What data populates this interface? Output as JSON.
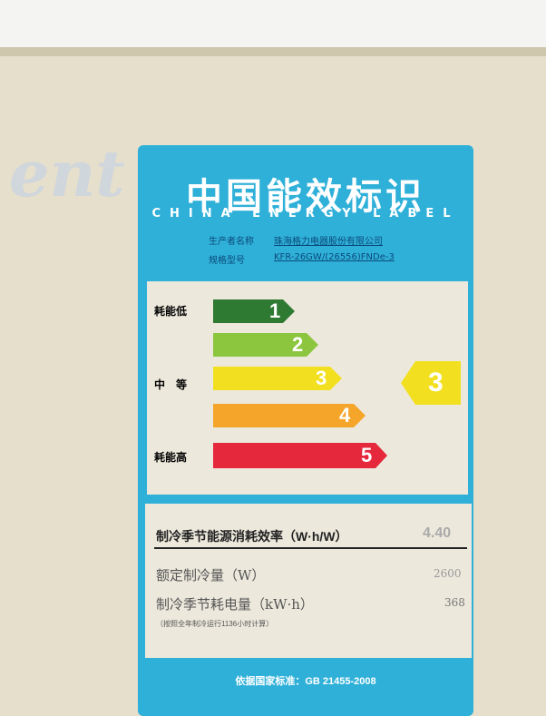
{
  "background": {
    "brand_fragment": "ent"
  },
  "label": {
    "title": "中国能效标识",
    "subtitle": "CHINA ENERGY LABEL",
    "manufacturer_label": "生产者名称",
    "manufacturer": "珠海格力电器股份有限公司",
    "model_label": "规格型号",
    "model": "KFR-26GW/(26556)FNDe-3",
    "scale": {
      "low": "耗能低",
      "mid": "中　等",
      "high": "耗能高",
      "grades": [
        "1",
        "2",
        "3",
        "4",
        "5"
      ],
      "rating": "3"
    },
    "specs": {
      "efficiency_label": "制冷季节能源消耗效率（W·h/W）",
      "efficiency": "4.40",
      "capacity_label": "额定制冷量（W）",
      "capacity": "2600",
      "consumption_label": "制冷季节耗电量（kW·h）",
      "consumption": "368",
      "note": "（按照全年制冷运行1136小时计算）"
    },
    "standard": "依据国家标准：GB 21455-2008"
  }
}
